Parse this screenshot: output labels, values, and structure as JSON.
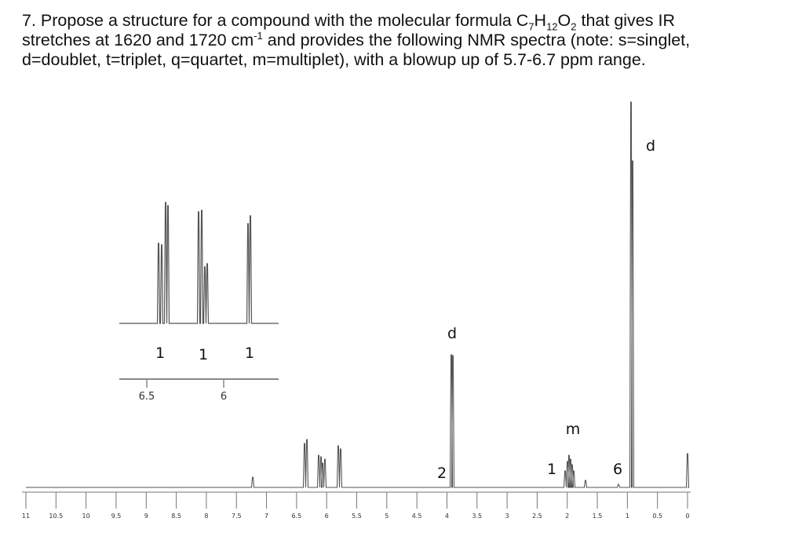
{
  "question": {
    "line1": [
      "7. Propose a structure for a compound with the molecular formula C",
      "7",
      "H",
      "12",
      "O",
      "2",
      " that gives IR"
    ],
    "line2": [
      "stretches at 1620 and 1720 cm",
      "-1",
      " and provides the following NMR spectra (note: s=singlet,"
    ],
    "line3": "d=doublet, t=triplet, q=quartet, m=multiplet), with a blowup up of 5.7-6.7 ppm range."
  },
  "spectrum": {
    "peak_labels": [
      "d",
      "2",
      "1",
      "m",
      "6",
      "d"
    ],
    "axis_ticks": [
      "11",
      "10.5",
      "10",
      "9.5",
      "9",
      "8.5",
      "8",
      "7.5",
      "7",
      "6.5",
      "6",
      "5.5",
      "5",
      "4.5",
      "4",
      "3.5",
      "3",
      "2.5",
      "2",
      "1.5",
      "1",
      "0.5",
      "0"
    ]
  },
  "inset": {
    "integrals": [
      "1",
      "1",
      "1"
    ],
    "ticks": [
      "6.5",
      "6"
    ]
  }
}
